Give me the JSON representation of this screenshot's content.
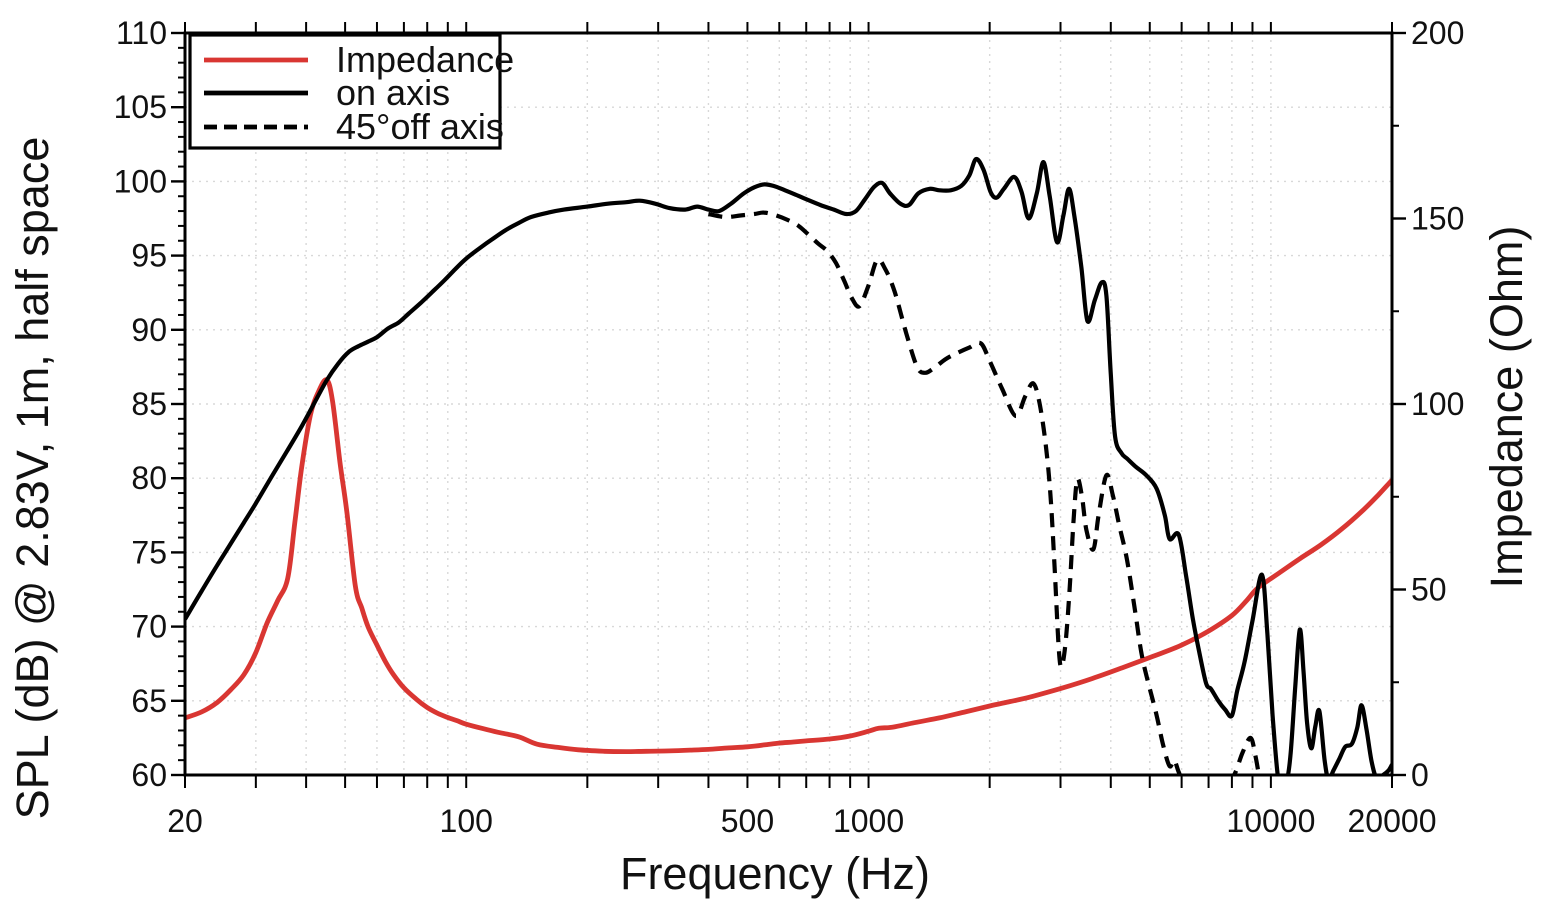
{
  "chart_data": {
    "type": "line",
    "title": "",
    "xlabel": "Frequency (Hz)",
    "ylabel_left": "SPL (dB) @ 2.83V, 1m, half space",
    "ylabel_right": "Impedance (Ohm)",
    "x_axis": {
      "scale": "log",
      "min": 20,
      "max": 20000,
      "labeled_ticks": [
        20,
        100,
        500,
        1000,
        10000,
        20000
      ],
      "minor_ticks": [
        20,
        30,
        40,
        50,
        60,
        70,
        80,
        90,
        100,
        200,
        300,
        400,
        500,
        600,
        700,
        800,
        900,
        1000,
        2000,
        3000,
        4000,
        5000,
        6000,
        7000,
        8000,
        9000,
        10000,
        20000
      ]
    },
    "y_left": {
      "min": 60,
      "max": 110,
      "major_step": 5,
      "minor_step": 1,
      "labels": [
        "60",
        "65",
        "70",
        "75",
        "80",
        "85",
        "90",
        "95",
        "100",
        "105",
        "110"
      ]
    },
    "y_right": {
      "min": 0,
      "max": 200,
      "major_step": 50,
      "minor_step": 25,
      "labels": [
        "0",
        "50",
        "100",
        "150",
        "200"
      ]
    },
    "grid": {
      "horizontal_every_db": 5,
      "vertical": "log-minor-ticks",
      "color": "#d8d8d8",
      "style": "dotted"
    },
    "legend": {
      "position": "top-left",
      "items": [
        {
          "label": "Impedance",
          "color": "#d93632",
          "dash": "solid"
        },
        {
          "label": "on axis",
          "color": "#000000",
          "dash": "solid"
        },
        {
          "label": "45°off axis",
          "color": "#000000",
          "dash": "dashed"
        }
      ]
    },
    "series": [
      {
        "name": "Impedance",
        "axis": "right",
        "unit": "Ohm",
        "color": "#d93632",
        "style": "solid",
        "width": 4.8,
        "points": [
          [
            20,
            15.4
          ],
          [
            22,
            17
          ],
          [
            24,
            19.5
          ],
          [
            26,
            23
          ],
          [
            28,
            27
          ],
          [
            30,
            33
          ],
          [
            32,
            41
          ],
          [
            34,
            47
          ],
          [
            36,
            53
          ],
          [
            37.5,
            68
          ],
          [
            39,
            83
          ],
          [
            41,
            97
          ],
          [
            43,
            103.5
          ],
          [
            45,
            106.5
          ],
          [
            46.5,
            101
          ],
          [
            48.6,
            84
          ],
          [
            50.5,
            71
          ],
          [
            53,
            51
          ],
          [
            55,
            45
          ],
          [
            57,
            40
          ],
          [
            60,
            35
          ],
          [
            63,
            30.5
          ],
          [
            66,
            27
          ],
          [
            70,
            23.5
          ],
          [
            75,
            20.5
          ],
          [
            80,
            18.2
          ],
          [
            85,
            16.6
          ],
          [
            90,
            15.5
          ],
          [
            95,
            14.6
          ],
          [
            100,
            13.7
          ],
          [
            110,
            12.5
          ],
          [
            120,
            11.5
          ],
          [
            135,
            10.3
          ],
          [
            150,
            8.3
          ],
          [
            170,
            7.4
          ],
          [
            190,
            6.8
          ],
          [
            220,
            6.4
          ],
          [
            250,
            6.3
          ],
          [
            280,
            6.4
          ],
          [
            320,
            6.5
          ],
          [
            360,
            6.7
          ],
          [
            400,
            6.9
          ],
          [
            450,
            7.3
          ],
          [
            500,
            7.6
          ],
          [
            550,
            8.1
          ],
          [
            600,
            8.6
          ],
          [
            650,
            8.9
          ],
          [
            700,
            9.2
          ],
          [
            800,
            9.7
          ],
          [
            900,
            10.5
          ],
          [
            1000,
            11.8
          ],
          [
            1060,
            12.6
          ],
          [
            1150,
            12.9
          ],
          [
            1300,
            14.1
          ],
          [
            1500,
            15.4
          ],
          [
            1750,
            17.1
          ],
          [
            2000,
            18.6
          ],
          [
            2250,
            19.8
          ],
          [
            2520,
            21
          ],
          [
            3000,
            23.3
          ],
          [
            3600,
            26
          ],
          [
            4300,
            29
          ],
          [
            5100,
            32
          ],
          [
            6000,
            35
          ],
          [
            7000,
            38.8
          ],
          [
            8000,
            43
          ],
          [
            8700,
            47
          ],
          [
            9300,
            50.5
          ],
          [
            10500,
            54.5
          ],
          [
            11800,
            58.3
          ],
          [
            13300,
            62
          ],
          [
            15000,
            66.3
          ],
          [
            17000,
            71.5
          ],
          [
            18500,
            75.5
          ],
          [
            20000,
            79.5
          ]
        ]
      },
      {
        "name": "on axis",
        "axis": "left",
        "unit": "dB",
        "color": "#000000",
        "style": "solid",
        "width": 4.2,
        "points": [
          [
            20,
            70.5
          ],
          [
            22,
            72.4
          ],
          [
            24,
            74.1
          ],
          [
            26,
            75.6
          ],
          [
            28,
            77
          ],
          [
            30,
            78.3
          ],
          [
            33,
            80.2
          ],
          [
            36,
            81.9
          ],
          [
            39,
            83.5
          ],
          [
            42,
            85.1
          ],
          [
            45,
            86.6
          ],
          [
            48,
            87.7
          ],
          [
            51,
            88.5
          ],
          [
            54,
            88.9
          ],
          [
            57,
            89.2
          ],
          [
            60,
            89.5
          ],
          [
            64,
            90.1
          ],
          [
            68,
            90.5
          ],
          [
            72,
            91.1
          ],
          [
            77,
            91.8
          ],
          [
            82,
            92.5
          ],
          [
            88,
            93.3
          ],
          [
            94,
            94.1
          ],
          [
            100,
            94.8
          ],
          [
            108,
            95.5
          ],
          [
            116,
            96.1
          ],
          [
            125,
            96.7
          ],
          [
            135,
            97.2
          ],
          [
            145,
            97.6
          ],
          [
            160,
            97.9
          ],
          [
            175,
            98.1
          ],
          [
            200,
            98.3
          ],
          [
            225,
            98.5
          ],
          [
            250,
            98.6
          ],
          [
            270,
            98.7
          ],
          [
            295,
            98.5
          ],
          [
            320,
            98.2
          ],
          [
            350,
            98.1
          ],
          [
            375,
            98.3
          ],
          [
            400,
            98.1
          ],
          [
            425,
            98
          ],
          [
            455,
            98.5
          ],
          [
            490,
            99.2
          ],
          [
            520,
            99.6
          ],
          [
            550,
            99.8
          ],
          [
            580,
            99.7
          ],
          [
            620,
            99.4
          ],
          [
            660,
            99.1
          ],
          [
            700,
            98.8
          ],
          [
            760,
            98.4
          ],
          [
            820,
            98.1
          ],
          [
            880,
            97.8
          ],
          [
            930,
            98
          ],
          [
            980,
            98.8
          ],
          [
            1030,
            99.6
          ],
          [
            1080,
            99.9
          ],
          [
            1130,
            99.2
          ],
          [
            1200,
            98.5
          ],
          [
            1260,
            98.4
          ],
          [
            1330,
            99.2
          ],
          [
            1420,
            99.5
          ],
          [
            1500,
            99.4
          ],
          [
            1600,
            99.4
          ],
          [
            1700,
            99.7
          ],
          [
            1780,
            100.4
          ],
          [
            1850,
            101.5
          ],
          [
            1930,
            100.8
          ],
          [
            2010,
            99.3
          ],
          [
            2080,
            98.9
          ],
          [
            2170,
            99.5
          ],
          [
            2300,
            100.3
          ],
          [
            2400,
            99.3
          ],
          [
            2500,
            97.5
          ],
          [
            2620,
            99.2
          ],
          [
            2720,
            101.3
          ],
          [
            2820,
            99
          ],
          [
            2940,
            95.9
          ],
          [
            3050,
            97.7
          ],
          [
            3150,
            99.5
          ],
          [
            3250,
            97.6
          ],
          [
            3380,
            94.2
          ],
          [
            3500,
            90.6
          ],
          [
            3650,
            92
          ],
          [
            3800,
            93.2
          ],
          [
            3900,
            92.3
          ],
          [
            4000,
            87
          ],
          [
            4100,
            82.8
          ],
          [
            4250,
            81.7
          ],
          [
            4400,
            81.3
          ],
          [
            4600,
            80.8
          ],
          [
            4900,
            80.2
          ],
          [
            5200,
            79.3
          ],
          [
            5450,
            77.5
          ],
          [
            5600,
            75.9
          ],
          [
            5900,
            76.2
          ],
          [
            6150,
            73.5
          ],
          [
            6400,
            70.5
          ],
          [
            6600,
            68.6
          ],
          [
            6900,
            66.2
          ],
          [
            7100,
            65.8
          ],
          [
            7400,
            65
          ],
          [
            7700,
            64.4
          ],
          [
            8000,
            64
          ],
          [
            8250,
            65.7
          ],
          [
            8600,
            67.6
          ],
          [
            9000,
            70.4
          ],
          [
            9500,
            73.5
          ],
          [
            9800,
            69.5
          ],
          [
            10100,
            64
          ],
          [
            10400,
            60
          ],
          [
            10600,
            59.4
          ],
          [
            10950,
            59.6
          ],
          [
            11200,
            61.5
          ],
          [
            11500,
            66
          ],
          [
            11800,
            69.8
          ],
          [
            12050,
            67
          ],
          [
            12300,
            63.5
          ],
          [
            12600,
            61.8
          ],
          [
            12900,
            63.3
          ],
          [
            13200,
            64.3
          ],
          [
            13600,
            61
          ],
          [
            13900,
            59.7
          ],
          [
            14300,
            60.3
          ],
          [
            14800,
            61.1
          ],
          [
            15300,
            61.9
          ],
          [
            15900,
            62.1
          ],
          [
            16400,
            63.2
          ],
          [
            16800,
            64.7
          ],
          [
            17300,
            63
          ],
          [
            17800,
            60.9
          ],
          [
            18300,
            59.8
          ],
          [
            19000,
            60
          ],
          [
            19600,
            60.3
          ],
          [
            20000,
            60.7
          ]
        ]
      },
      {
        "name": "45°off axis",
        "axis": "left",
        "unit": "dB",
        "color": "#000000",
        "style": "dashed",
        "width": 4.2,
        "points": [
          [
            400,
            97.8
          ],
          [
            440,
            97.6
          ],
          [
            480,
            97.7
          ],
          [
            520,
            97.8
          ],
          [
            550,
            97.9
          ],
          [
            590,
            97.7
          ],
          [
            630,
            97.4
          ],
          [
            670,
            97
          ],
          [
            710,
            96.4
          ],
          [
            750,
            95.8
          ],
          [
            790,
            95.3
          ],
          [
            830,
            94.5
          ],
          [
            870,
            93.3
          ],
          [
            910,
            92.1
          ],
          [
            950,
            91.6
          ],
          [
            1000,
            93
          ],
          [
            1050,
            94.7
          ],
          [
            1100,
            94.1
          ],
          [
            1160,
            92.6
          ],
          [
            1240,
            89.8
          ],
          [
            1320,
            87.5
          ],
          [
            1380,
            87.1
          ],
          [
            1450,
            87.4
          ],
          [
            1550,
            88
          ],
          [
            1650,
            88.4
          ],
          [
            1780,
            88.8
          ],
          [
            1900,
            89.1
          ],
          [
            2000,
            87.9
          ],
          [
            2150,
            86
          ],
          [
            2320,
            84.2
          ],
          [
            2450,
            85.5
          ],
          [
            2560,
            86.4
          ],
          [
            2650,
            85.3
          ],
          [
            2750,
            82.5
          ],
          [
            2830,
            79
          ],
          [
            2900,
            74
          ],
          [
            2970,
            68.5
          ],
          [
            3020,
            67.3
          ],
          [
            3090,
            69
          ],
          [
            3160,
            72.5
          ],
          [
            3230,
            77
          ],
          [
            3300,
            79.9
          ],
          [
            3390,
            78.8
          ],
          [
            3480,
            76.5
          ],
          [
            3620,
            75.2
          ],
          [
            3730,
            77.5
          ],
          [
            3900,
            80.2
          ],
          [
            4050,
            78.8
          ],
          [
            4200,
            76.8
          ],
          [
            4390,
            74.5
          ],
          [
            4600,
            71
          ],
          [
            4800,
            67.8
          ],
          [
            5180,
            64.2
          ],
          [
            5400,
            62
          ],
          [
            5600,
            60.6
          ],
          [
            5750,
            61
          ],
          [
            5900,
            60.2
          ],
          [
            6100,
            59.4
          ],
          [
            6500,
            59
          ],
          [
            7000,
            59
          ],
          [
            7600,
            59.3
          ],
          [
            8100,
            60
          ],
          [
            8500,
            61.5
          ],
          [
            8900,
            62.5
          ],
          [
            9150,
            61.3
          ],
          [
            9400,
            59.5
          ]
        ]
      }
    ],
    "annotations": {
      "impedance_peak": {
        "frequency_hz": 45,
        "impedance_ohm": 106.5
      },
      "impedance_minimum": {
        "frequency_hz": 250,
        "impedance_ohm": 6.3
      },
      "spl_maximum": {
        "frequency_hz": 1850,
        "spl_db": 101.5
      }
    }
  }
}
